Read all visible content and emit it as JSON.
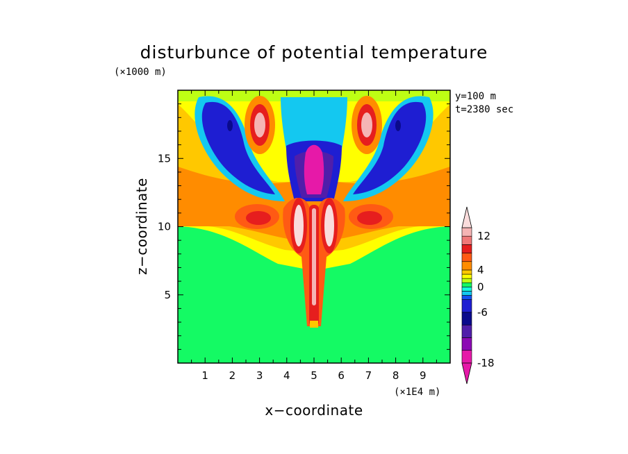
{
  "chart_data": {
    "type": "heatmap",
    "title": "disturbunce of potential temperature",
    "xlabel": "x−coordinate",
    "ylabel": "z−coordinate",
    "x_unit": "(×1E4 m)",
    "y_unit": "(×1000 m)",
    "annotations": [
      "y=100 m",
      "t=2380 sec"
    ],
    "xlim": [
      0,
      10
    ],
    "ylim": [
      0,
      20
    ],
    "x_ticks": [
      1,
      2,
      3,
      4,
      5,
      6,
      7,
      8,
      9
    ],
    "y_ticks": [
      5,
      10,
      15
    ],
    "colorbar": {
      "levels": [
        -18,
        -15,
        -12,
        -9,
        -6,
        -3,
        -2,
        -1,
        0,
        1,
        2,
        3,
        4,
        6,
        8,
        10,
        12,
        14
      ],
      "labels": [
        12,
        4,
        0,
        -6,
        -18
      ],
      "colors": [
        "#e619a8",
        "#8c0ab4",
        "#501eaa",
        "#0a0a8c",
        "#1e1ed2",
        "#1450f0",
        "#14c8f0",
        "#14fadc",
        "#14fa64",
        "#beff14",
        "#ffff00",
        "#ffc800",
        "#ff8c00",
        "#ff5a14",
        "#e61e1e",
        "#f07878",
        "#f5b4b4",
        "#fadcdc"
      ]
    }
  }
}
